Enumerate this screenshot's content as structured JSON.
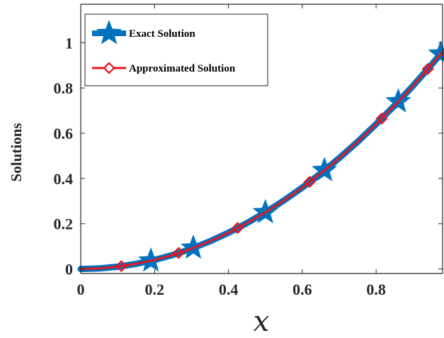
{
  "chart_data": {
    "type": "line",
    "title": "",
    "xlabel": "x",
    "ylabel": "Solutions",
    "xlim": [
      0,
      0.98
    ],
    "ylim": [
      -0.02,
      1.17
    ],
    "x_ticks": [
      "0",
      "0.2",
      "0.4",
      "0.6",
      "0.8"
    ],
    "y_ticks": [
      "0",
      "0.2",
      "0.4",
      "0.6",
      "0.8",
      "1"
    ],
    "x_tick_values": [
      0,
      0.2,
      0.4,
      0.6,
      0.8
    ],
    "y_tick_values": [
      0,
      0.2,
      0.4,
      0.6,
      0.8,
      1
    ],
    "grid": false,
    "legend_position": "top-left",
    "series": [
      {
        "name": "Exact Solution",
        "color": "#0072BD",
        "marker": "star-icon",
        "x": [
          0,
          0.05,
          0.1,
          0.15,
          0.2,
          0.25,
          0.3,
          0.35,
          0.4,
          0.45,
          0.5,
          0.55,
          0.6,
          0.65,
          0.7,
          0.75,
          0.8,
          0.85,
          0.9,
          0.95,
          0.98
        ],
        "y": [
          0.0,
          0.0025,
          0.01,
          0.0225,
          0.04,
          0.0625,
          0.09,
          0.1225,
          0.16,
          0.2025,
          0.25,
          0.3025,
          0.36,
          0.4225,
          0.49,
          0.5625,
          0.64,
          0.7225,
          0.81,
          0.9025,
          0.9604
        ],
        "markers_x": [
          0.19,
          0.305,
          0.5,
          0.66,
          0.86,
          0.975
        ]
      },
      {
        "name": "Approximated Solution",
        "color": "#E8141E",
        "marker": "diamond-icon",
        "x": [
          0,
          0.05,
          0.1,
          0.15,
          0.2,
          0.25,
          0.3,
          0.35,
          0.4,
          0.45,
          0.5,
          0.55,
          0.6,
          0.65,
          0.7,
          0.75,
          0.8,
          0.85,
          0.9,
          0.95,
          0.98
        ],
        "y": [
          0.0,
          0.0025,
          0.01,
          0.0225,
          0.04,
          0.0625,
          0.09,
          0.1225,
          0.16,
          0.2025,
          0.25,
          0.3025,
          0.36,
          0.4225,
          0.49,
          0.5625,
          0.64,
          0.7225,
          0.81,
          0.9025,
          0.9604
        ],
        "markers_x": [
          0.11,
          0.265,
          0.425,
          0.62,
          0.815,
          0.94
        ]
      }
    ]
  }
}
